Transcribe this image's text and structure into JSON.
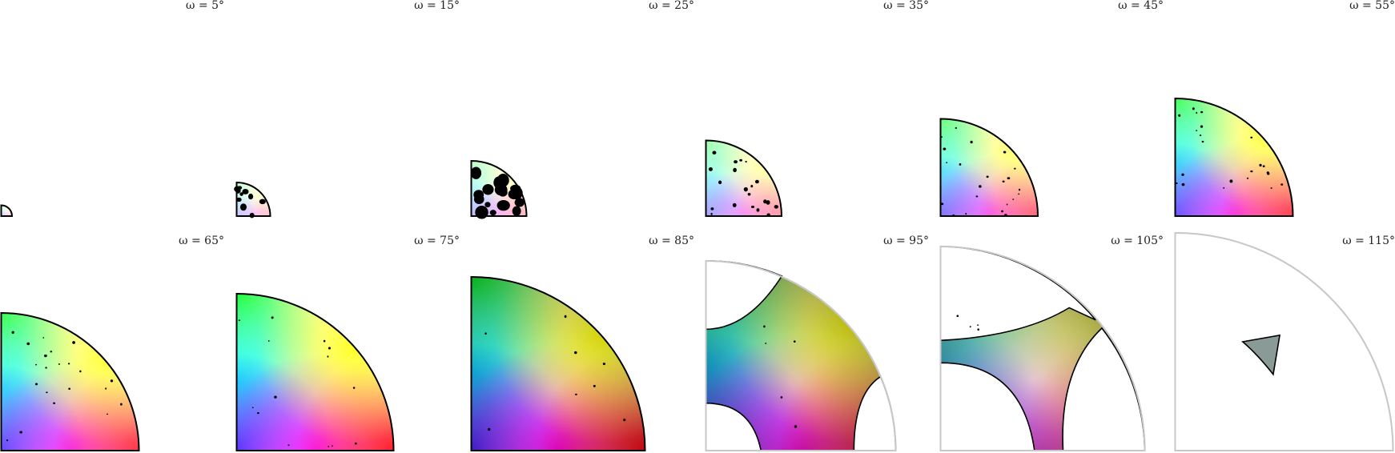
{
  "colors": {
    "outline": "#000000",
    "clipped_outline": "#c8c8c8",
    "grain": "#000000",
    "background": "#ffffff"
  },
  "panels": [
    {
      "label": "ω = 5°",
      "grid_row": 1,
      "grid_col": 1,
      "sector_radius_frac": 0.09,
      "color_strength": 0.15,
      "grain_size": 0,
      "grain_count": 0,
      "variant": "small"
    },
    {
      "label": "ω = 15°",
      "grid_row": 1,
      "grid_col": 2,
      "sector_radius_frac": 0.28,
      "color_strength": 0.2,
      "grain_size": 3.0,
      "grain_count": 10,
      "variant": "small"
    },
    {
      "label": "ω = 25°",
      "grid_row": 1,
      "grid_col": 3,
      "sector_radius_frac": 0.46,
      "color_strength": 0.25,
      "grain_size": 6.0,
      "grain_count": 18,
      "variant": "small"
    },
    {
      "label": "ω = 35°",
      "grid_row": 1,
      "grid_col": 4,
      "sector_radius_frac": 0.63,
      "color_strength": 0.35,
      "grain_size": 2.0,
      "grain_count": 20,
      "variant": "small"
    },
    {
      "label": "ω = 45°",
      "grid_row": 1,
      "grid_col": 5,
      "sector_radius_frac": 0.81,
      "color_strength": 0.55,
      "grain_size": 1.4,
      "grain_count": 22,
      "variant": "small"
    },
    {
      "label": "ω = 55°",
      "grid_row": 1,
      "grid_col": 6,
      "sector_radius_frac": 0.98,
      "color_strength": 0.7,
      "grain_size": 1.4,
      "grain_count": 22,
      "variant": "small"
    },
    {
      "label": "ω = 65°",
      "grid_row": 2,
      "grid_col": 1,
      "sector_radius_frac": 0.58,
      "color_strength": 0.75,
      "grain_size": 1.4,
      "grain_count": 22,
      "variant": "full"
    },
    {
      "label": "ω = 75°",
      "grid_row": 2,
      "grid_col": 2,
      "sector_radius_frac": 0.65,
      "color_strength": 0.85,
      "grain_size": 1.3,
      "grain_count": 14,
      "variant": "full"
    },
    {
      "label": "ω = 85°",
      "grid_row": 2,
      "grid_col": 3,
      "sector_radius_frac": 0.73,
      "color_strength": 0.95,
      "grain_size": 1.3,
      "grain_count": 8,
      "variant": "full"
    },
    {
      "label": "ω = 95°",
      "grid_row": 2,
      "grid_col": 4,
      "sector_radius_frac": 0.8,
      "color_strength": 0.9,
      "grain_size": 1.2,
      "grain_count": 5,
      "variant": "cut1"
    },
    {
      "label": "ω = 105°",
      "grid_row": 2,
      "grid_col": 5,
      "sector_radius_frac": 0.86,
      "color_strength": 0.6,
      "grain_size": 1.1,
      "grain_count": 4,
      "variant": "cut2"
    },
    {
      "label": "ω = 115°",
      "grid_row": 2,
      "grid_col": 6,
      "sector_radius_frac": 0.92,
      "color_strength": 0.5,
      "grain_size": 0,
      "grain_count": 0,
      "variant": "triangle"
    }
  ]
}
